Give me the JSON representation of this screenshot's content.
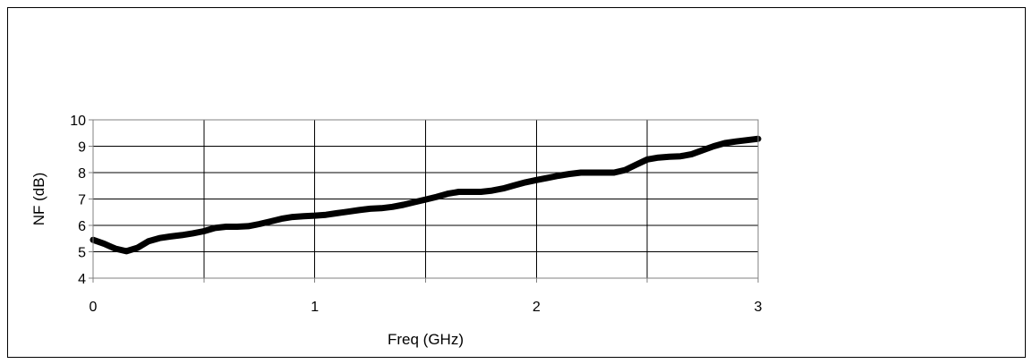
{
  "chart_data": {
    "type": "line",
    "title": "",
    "xlabel": "Freq (GHz)",
    "ylabel": "NF (dB)",
    "xlim": [
      0,
      3
    ],
    "ylim": [
      4,
      10
    ],
    "xticks": [
      0,
      1,
      2,
      3
    ],
    "yticks": [
      4,
      5,
      6,
      7,
      8,
      9,
      10
    ],
    "grid": true,
    "legend": "none",
    "line_color": "#000000",
    "series": [
      {
        "x": [
          0,
          0.05,
          0.1,
          0.15,
          0.2,
          0.25,
          0.3,
          0.35,
          0.4,
          0.45,
          0.5,
          0.55,
          0.6,
          0.65,
          0.7,
          0.75,
          0.8,
          0.85,
          0.9,
          0.95,
          1.0,
          1.05,
          1.1,
          1.15,
          1.2,
          1.25,
          1.3,
          1.35,
          1.4,
          1.45,
          1.5,
          1.55,
          1.6,
          1.65,
          1.7,
          1.75,
          1.8,
          1.85,
          1.9,
          1.95,
          2.0,
          2.05,
          2.1,
          2.15,
          2.2,
          2.25,
          2.3,
          2.35,
          2.4,
          2.45,
          2.5,
          2.55,
          2.6,
          2.65,
          2.7,
          2.75,
          2.8,
          2.85,
          2.9,
          2.95,
          3.0
        ],
        "values": [
          5.45,
          5.3,
          5.12,
          5.02,
          5.15,
          5.4,
          5.52,
          5.58,
          5.63,
          5.7,
          5.78,
          5.9,
          5.95,
          5.95,
          5.97,
          6.05,
          6.15,
          6.25,
          6.32,
          6.35,
          6.37,
          6.4,
          6.46,
          6.52,
          6.58,
          6.63,
          6.65,
          6.7,
          6.78,
          6.88,
          6.98,
          7.08,
          7.2,
          7.27,
          7.27,
          7.27,
          7.32,
          7.4,
          7.52,
          7.63,
          7.72,
          7.8,
          7.88,
          7.95,
          8.0,
          8.0,
          8.0,
          8.0,
          8.1,
          8.3,
          8.5,
          8.57,
          8.6,
          8.62,
          8.7,
          8.85,
          9.0,
          9.12,
          9.18,
          9.23,
          9.28
        ]
      }
    ]
  }
}
